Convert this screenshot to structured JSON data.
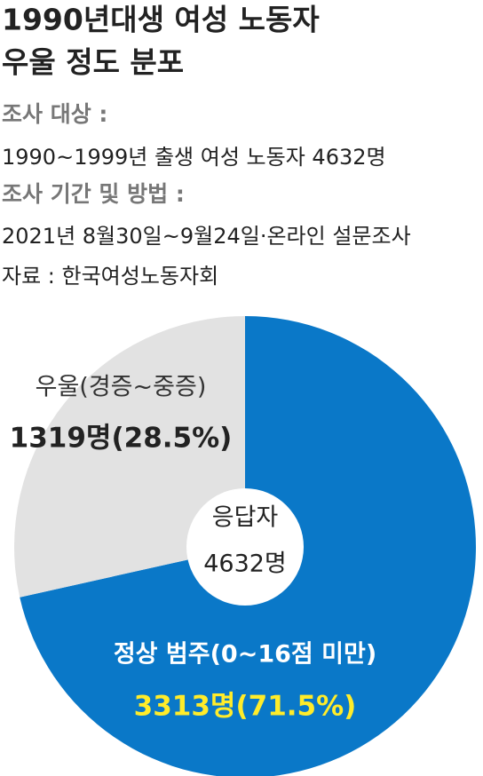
{
  "chart_data": {
    "type": "pie",
    "title": [
      "1990년대생 여성 노동자",
      "우울 정도 분포"
    ],
    "notes": [
      "조사 대상 :",
      "1990~1999년 출생 여성 노동자 4632명",
      "조사 기간 및 방법 :",
      "2021년 8월30일~9월24일·온라인 설문조사",
      "자료 : 한국여성노동자회"
    ],
    "center_label": [
      "응답자",
      "4632명"
    ],
    "categories": [
      "정상 범주(0~16점 미만)",
      "우울(경증~중증)"
    ],
    "values": [
      71.5,
      28.5
    ],
    "value_labels": [
      "3313명(71.5%)",
      "1319명(28.5%)"
    ],
    "colors": [
      "#0a78c8",
      "#e2e2e2"
    ]
  }
}
